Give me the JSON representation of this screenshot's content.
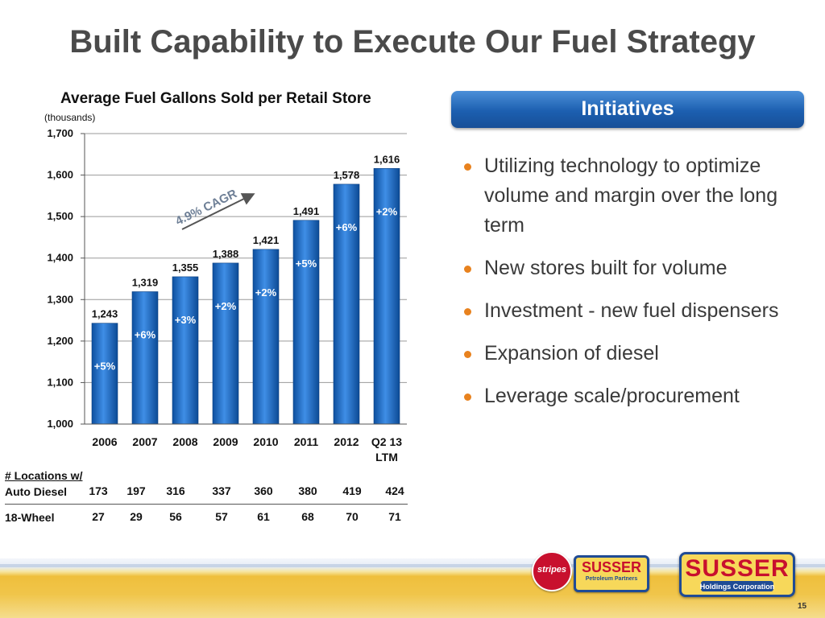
{
  "slide": {
    "title": "Built Capability to Execute Our Fuel Strategy",
    "page_number": "15"
  },
  "chart_data": {
    "type": "bar",
    "title": "Average Fuel Gallons Sold per Retail Store",
    "units": "(thousands)",
    "categories": [
      "2006",
      "2007",
      "2008",
      "2009",
      "2010",
      "2011",
      "2012",
      "Q2 13\nLTM"
    ],
    "values": [
      1243,
      1319,
      1355,
      1388,
      1421,
      1491,
      1578,
      1616
    ],
    "value_labels": [
      "1,243",
      "1,319",
      "1,355",
      "1,388",
      "1,421",
      "1,491",
      "1,578",
      "1,616"
    ],
    "growth_labels": [
      "+5%",
      "+6%",
      "+3%",
      "+2%",
      "+2%",
      "+5%",
      "+6%",
      "+2%"
    ],
    "ylim": [
      1000,
      1700
    ],
    "yticks": [
      1000,
      1100,
      1200,
      1300,
      1400,
      1500,
      1600,
      1700
    ],
    "ytick_labels": [
      "1,000",
      "1,100",
      "1,200",
      "1,300",
      "1,400",
      "1,500",
      "1,600",
      "1,700"
    ],
    "grid": true,
    "annotation": "4.9% CAGR",
    "bar_color": "#1565c0"
  },
  "table": {
    "header_line1": "# Locations w/",
    "rows": [
      {
        "label": "Auto Diesel",
        "values": [
          "173",
          "197",
          "316",
          "337",
          "360",
          "380",
          "419",
          "424"
        ]
      },
      {
        "label": "18-Wheel",
        "values": [
          "27",
          "29",
          "56",
          "57",
          "61",
          "68",
          "70",
          "71"
        ]
      }
    ]
  },
  "initiatives": {
    "title": "Initiatives",
    "bullet_color": "#e8821e",
    "items": [
      "Utilizing technology to optimize volume and margin over the long term",
      "New stores built for volume",
      "Investment - new fuel dispensers",
      "Expansion of diesel",
      "Leverage scale/procurement"
    ]
  },
  "logos": {
    "stripes": "stripes",
    "partners_main": "SUSSER",
    "partners_sub": "Petroleum Partners",
    "holdings_main": "SUSSER",
    "holdings_sub": "Holdings Corporation"
  }
}
